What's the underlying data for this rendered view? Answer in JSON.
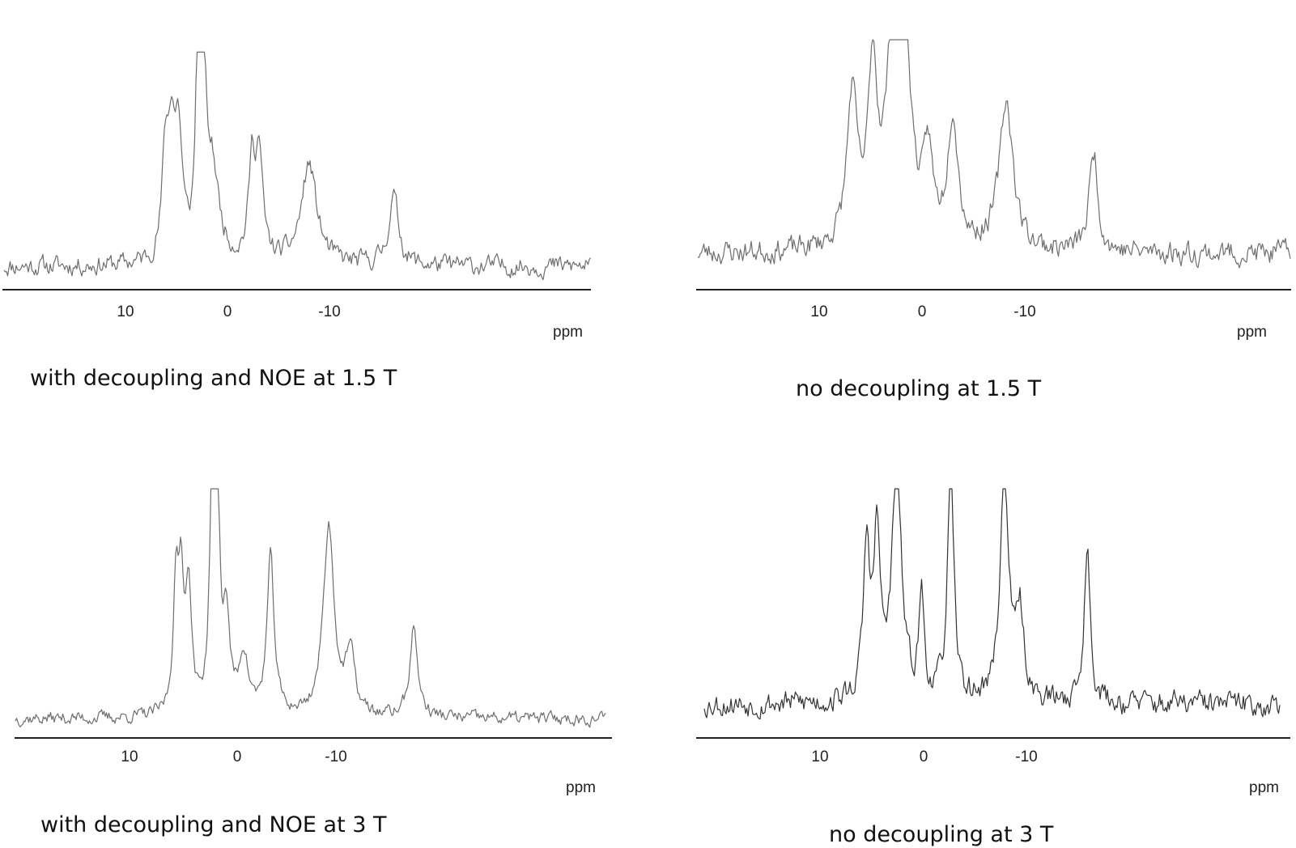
{
  "chart_data": [
    {
      "type": "line",
      "title": "with decoupling and NOE at 1.5 T",
      "xlabel": "ppm",
      "ylabel": "",
      "xlim": [
        22.5,
        -34.5
      ],
      "x_ticks": [
        10,
        0,
        -10
      ],
      "x_tick_labels": [
        "10",
        "0",
        "-10"
      ],
      "grid": false,
      "line_color": "#6e6e6e",
      "noise": 0.07,
      "baseline": 0.08,
      "peaks": [
        {
          "ppm": 6.1,
          "height": 0.42,
          "width": 0.35
        },
        {
          "ppm": 5.5,
          "height": 0.48,
          "width": 0.4
        },
        {
          "ppm": 4.8,
          "height": 0.52,
          "width": 0.45
        },
        {
          "ppm": 2.9,
          "height": 0.86,
          "width": 0.25
        },
        {
          "ppm": 2.4,
          "height": 0.9,
          "width": 0.28
        },
        {
          "ppm": 1.5,
          "height": 0.4,
          "width": 0.8
        },
        {
          "ppm": -2.4,
          "height": 0.4,
          "width": 0.38
        },
        {
          "ppm": -3.1,
          "height": 0.45,
          "width": 0.42
        },
        {
          "ppm": -8.0,
          "height": 0.44,
          "width": 0.9
        },
        {
          "ppm": -16.3,
          "height": 0.3,
          "width": 0.6
        }
      ],
      "seed": 11
    },
    {
      "type": "line",
      "title": "no decoupling at 1.5 T",
      "xlabel": "ppm",
      "ylabel": "",
      "xlim": [
        22.5,
        -34.5
      ],
      "x_ticks": [
        10,
        0,
        -10
      ],
      "x_tick_labels": [
        "10",
        "0",
        "-10"
      ],
      "grid": false,
      "line_color": "#6e6e6e",
      "noise": 0.08,
      "baseline": 0.13,
      "peaks": [
        {
          "ppm": 6.8,
          "height": 0.62,
          "width": 0.6
        },
        {
          "ppm": 4.8,
          "height": 0.7,
          "width": 0.5
        },
        {
          "ppm": 2.6,
          "height": 1.0,
          "width": 0.9
        },
        {
          "ppm": 1.6,
          "height": 0.55,
          "width": 0.7
        },
        {
          "ppm": -0.6,
          "height": 0.35,
          "width": 0.5
        },
        {
          "ppm": -3.0,
          "height": 0.55,
          "width": 0.6
        },
        {
          "ppm": -8.2,
          "height": 0.62,
          "width": 0.8
        },
        {
          "ppm": -16.7,
          "height": 0.42,
          "width": 0.5
        }
      ],
      "seed": 23
    },
    {
      "type": "line",
      "title": "with decoupling and NOE at 3 T",
      "xlabel": "ppm",
      "ylabel": "",
      "xlim": [
        22.5,
        -34.5
      ],
      "x_ticks": [
        10,
        0,
        -10
      ],
      "x_tick_labels": [
        "10",
        "0",
        "-10"
      ],
      "grid": false,
      "line_color": "#6e6e6e",
      "noise": 0.045,
      "baseline": 0.06,
      "peaks": [
        {
          "ppm": 5.7,
          "height": 0.5,
          "width": 0.3
        },
        {
          "ppm": 5.2,
          "height": 0.52,
          "width": 0.3
        },
        {
          "ppm": 4.5,
          "height": 0.52,
          "width": 0.3
        },
        {
          "ppm": 2.3,
          "height": 0.92,
          "width": 0.28
        },
        {
          "ppm": 1.9,
          "height": 0.98,
          "width": 0.28
        },
        {
          "ppm": 1.0,
          "height": 0.38,
          "width": 0.35
        },
        {
          "ppm": -0.6,
          "height": 0.25,
          "width": 0.5
        },
        {
          "ppm": -3.1,
          "height": 0.65,
          "width": 0.4
        },
        {
          "ppm": -8.5,
          "height": 0.8,
          "width": 0.6
        },
        {
          "ppm": -10.5,
          "height": 0.25,
          "width": 0.5
        },
        {
          "ppm": -16.4,
          "height": 0.37,
          "width": 0.45
        }
      ],
      "seed": 37
    },
    {
      "type": "line",
      "title": "no decoupling at 3 T",
      "xlabel": "ppm",
      "ylabel": "",
      "xlim": [
        22.5,
        -34.5
      ],
      "x_ticks": [
        10,
        0,
        -10
      ],
      "x_tick_labels": [
        "10",
        "0",
        "-10"
      ],
      "grid": false,
      "line_color": "#333333",
      "noise": 0.085,
      "baseline": 0.12,
      "peaks": [
        {
          "ppm": 5.5,
          "height": 0.62,
          "width": 0.38
        },
        {
          "ppm": 4.5,
          "height": 0.65,
          "width": 0.38
        },
        {
          "ppm": 2.6,
          "height": 0.98,
          "width": 0.55
        },
        {
          "ppm": 0.2,
          "height": 0.42,
          "width": 0.3
        },
        {
          "ppm": -2.6,
          "height": 0.92,
          "width": 0.38
        },
        {
          "ppm": -7.8,
          "height": 0.96,
          "width": 0.5
        },
        {
          "ppm": -9.3,
          "height": 0.35,
          "width": 0.45
        },
        {
          "ppm": -15.8,
          "height": 0.62,
          "width": 0.38
        }
      ],
      "seed": 53
    }
  ]
}
